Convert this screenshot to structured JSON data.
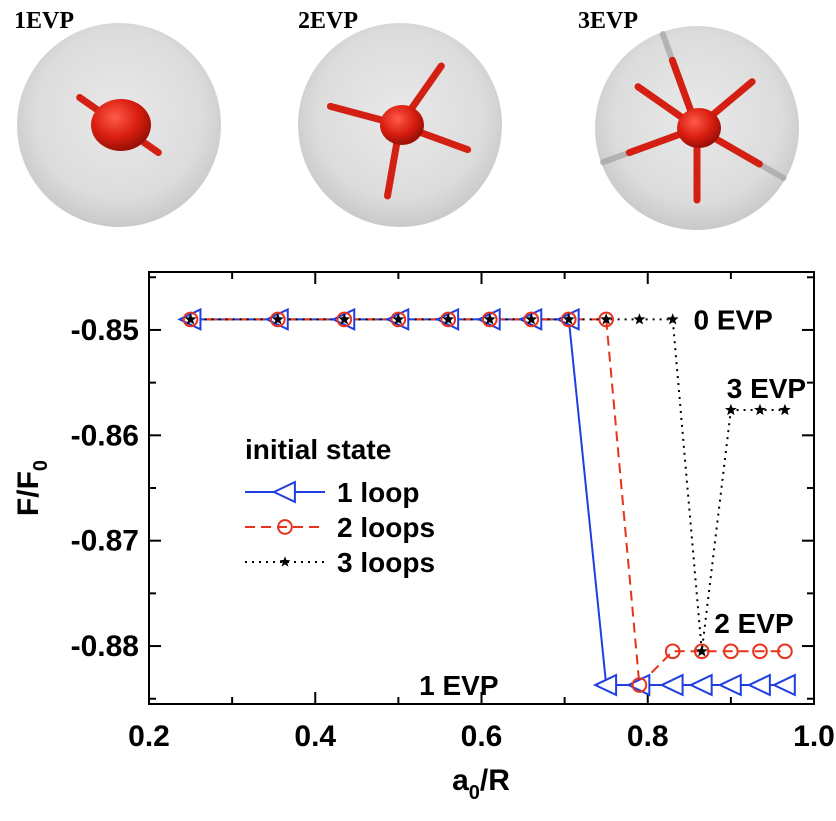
{
  "panels": [
    {
      "label": "1EVP",
      "arms": 2
    },
    {
      "label": "2EVP",
      "arms": 4
    },
    {
      "label": "3EVP",
      "arms": 6
    }
  ],
  "chart_data": {
    "type": "line",
    "xlabel_main": "a",
    "xlabel_sub": "0",
    "xlabel_tail": "/R",
    "ylabel_main": "F/F",
    "ylabel_sub": "0",
    "xlim": [
      0.2,
      1.0
    ],
    "ylim": [
      -0.8855,
      -0.8445
    ],
    "xticks": [
      0.2,
      0.4,
      0.6,
      0.8,
      1.0
    ],
    "xtick_labels": [
      "0.2",
      "0.4",
      "0.6",
      "0.8",
      "1.0"
    ],
    "yticks": [
      -0.85,
      -0.86,
      -0.87,
      -0.88
    ],
    "ytick_labels": [
      "-0.85",
      "-0.86",
      "-0.87",
      "-0.88"
    ],
    "legend_title": "initial state",
    "series": [
      {
        "name": "1 loop",
        "color": "#1f3fe0",
        "dash": "solid",
        "marker": "triangle-left",
        "x": [
          0.25,
          0.355,
          0.435,
          0.5,
          0.56,
          0.61,
          0.66,
          0.705,
          0.75,
          0.79,
          0.83,
          0.865,
          0.9,
          0.935,
          0.965
        ],
        "y": [
          -0.849,
          -0.849,
          -0.849,
          -0.849,
          -0.849,
          -0.849,
          -0.849,
          -0.849,
          -0.8837,
          -0.8837,
          -0.8837,
          -0.8837,
          -0.8837,
          -0.8837,
          -0.8837
        ]
      },
      {
        "name": "2 loops",
        "color": "#e8321c",
        "dash": "dashed",
        "marker": "circle",
        "x": [
          0.25,
          0.355,
          0.435,
          0.5,
          0.56,
          0.61,
          0.66,
          0.705,
          0.75,
          0.79,
          0.83,
          0.865,
          0.9,
          0.935,
          0.965
        ],
        "y": [
          -0.849,
          -0.849,
          -0.849,
          -0.849,
          -0.849,
          -0.849,
          -0.849,
          -0.849,
          -0.849,
          -0.8837,
          -0.8805,
          -0.8805,
          -0.8805,
          -0.8805,
          -0.8805
        ]
      },
      {
        "name": "3 loops",
        "color": "#000000",
        "dash": "dotted",
        "marker": "star",
        "x": [
          0.25,
          0.355,
          0.435,
          0.5,
          0.56,
          0.61,
          0.66,
          0.705,
          0.75,
          0.79,
          0.83,
          0.865,
          0.9,
          0.935,
          0.965
        ],
        "y": [
          -0.849,
          -0.849,
          -0.849,
          -0.849,
          -0.849,
          -0.849,
          -0.849,
          -0.849,
          -0.849,
          -0.849,
          -0.849,
          -0.8805,
          -0.8576,
          -0.8576,
          -0.8576
        ]
      }
    ],
    "annotations": [
      {
        "text": "0 EVP",
        "x": 0.855,
        "y": -0.849
      },
      {
        "text": "3 EVP",
        "x": 0.895,
        "y": -0.8555
      },
      {
        "text": "2 EVP",
        "x": 0.88,
        "y": -0.8778
      },
      {
        "text": "1 EVP",
        "x": 0.525,
        "y": -0.8837
      }
    ]
  }
}
